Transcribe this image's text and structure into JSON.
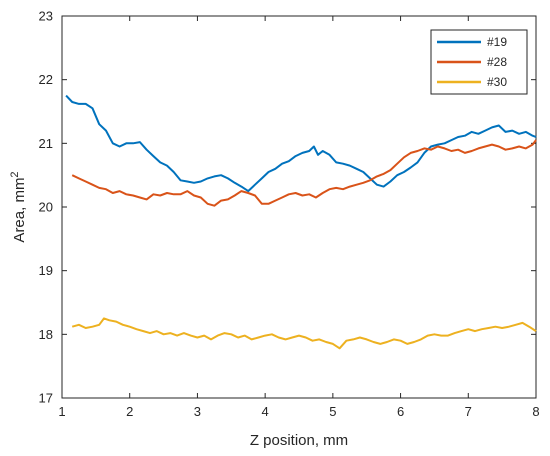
{
  "chart_data": {
    "type": "line",
    "xlabel": "Z position, mm",
    "ylabel": {
      "base": "Area, mm",
      "superscript": "2"
    },
    "xlim": [
      1,
      8
    ],
    "ylim": [
      17,
      23
    ],
    "xticks": [
      1,
      2,
      3,
      4,
      5,
      6,
      7,
      8
    ],
    "yticks": [
      17,
      18,
      19,
      20,
      21,
      22,
      23
    ],
    "grid": false,
    "legend_position": "top-right",
    "series": [
      {
        "name": "#19",
        "color": "#0072BD",
        "x": [
          1.06,
          1.15,
          1.25,
          1.35,
          1.45,
          1.55,
          1.65,
          1.75,
          1.85,
          1.95,
          2.05,
          2.15,
          2.25,
          2.35,
          2.45,
          2.55,
          2.65,
          2.75,
          2.85,
          2.95,
          3.05,
          3.15,
          3.25,
          3.35,
          3.45,
          3.55,
          3.65,
          3.75,
          3.85,
          3.95,
          4.05,
          4.15,
          4.25,
          4.35,
          4.45,
          4.55,
          4.65,
          4.72,
          4.78,
          4.85,
          4.95,
          5.05,
          5.15,
          5.25,
          5.35,
          5.45,
          5.55,
          5.65,
          5.75,
          5.85,
          5.95,
          6.05,
          6.15,
          6.25,
          6.35,
          6.45,
          6.55,
          6.65,
          6.75,
          6.85,
          6.95,
          7.05,
          7.15,
          7.25,
          7.35,
          7.45,
          7.55,
          7.65,
          7.75,
          7.85,
          7.95,
          8.0
        ],
        "y": [
          21.75,
          21.65,
          21.62,
          21.62,
          21.55,
          21.3,
          21.2,
          21.0,
          20.95,
          21.0,
          21.0,
          21.02,
          20.9,
          20.8,
          20.7,
          20.65,
          20.55,
          20.42,
          20.4,
          20.38,
          20.4,
          20.45,
          20.48,
          20.5,
          20.45,
          20.38,
          20.32,
          20.25,
          20.35,
          20.45,
          20.55,
          20.6,
          20.68,
          20.72,
          20.8,
          20.85,
          20.88,
          20.95,
          20.82,
          20.88,
          20.82,
          20.7,
          20.68,
          20.65,
          20.6,
          20.55,
          20.45,
          20.35,
          20.32,
          20.4,
          20.5,
          20.55,
          20.62,
          20.7,
          20.85,
          20.95,
          20.98,
          21.0,
          21.05,
          21.1,
          21.12,
          21.18,
          21.15,
          21.2,
          21.25,
          21.28,
          21.18,
          21.2,
          21.15,
          21.18,
          21.12,
          21.1
        ]
      },
      {
        "name": "#28",
        "color": "#D95319",
        "x": [
          1.15,
          1.25,
          1.35,
          1.45,
          1.55,
          1.65,
          1.75,
          1.85,
          1.95,
          2.05,
          2.15,
          2.25,
          2.35,
          2.45,
          2.55,
          2.65,
          2.75,
          2.85,
          2.95,
          3.05,
          3.15,
          3.25,
          3.35,
          3.45,
          3.55,
          3.65,
          3.75,
          3.85,
          3.95,
          4.05,
          4.15,
          4.25,
          4.35,
          4.45,
          4.55,
          4.65,
          4.75,
          4.85,
          4.95,
          5.05,
          5.15,
          5.25,
          5.35,
          5.45,
          5.55,
          5.65,
          5.75,
          5.85,
          5.95,
          6.05,
          6.15,
          6.25,
          6.35,
          6.45,
          6.55,
          6.65,
          6.75,
          6.85,
          6.95,
          7.05,
          7.15,
          7.25,
          7.35,
          7.45,
          7.55,
          7.65,
          7.75,
          7.85,
          7.95,
          8.0
        ],
        "y": [
          20.5,
          20.45,
          20.4,
          20.35,
          20.3,
          20.28,
          20.22,
          20.25,
          20.2,
          20.18,
          20.15,
          20.12,
          20.2,
          20.18,
          20.22,
          20.2,
          20.2,
          20.25,
          20.18,
          20.15,
          20.05,
          20.02,
          20.1,
          20.12,
          20.18,
          20.25,
          20.22,
          20.18,
          20.05,
          20.05,
          20.1,
          20.15,
          20.2,
          20.22,
          20.18,
          20.2,
          20.15,
          20.22,
          20.28,
          20.3,
          20.28,
          20.32,
          20.35,
          20.38,
          20.42,
          20.48,
          20.52,
          20.58,
          20.68,
          20.78,
          20.85,
          20.88,
          20.92,
          20.9,
          20.95,
          20.92,
          20.88,
          20.9,
          20.85,
          20.88,
          20.92,
          20.95,
          20.98,
          20.95,
          20.9,
          20.92,
          20.95,
          20.92,
          20.98,
          21.05
        ]
      },
      {
        "name": "#30",
        "color": "#EDB120",
        "x": [
          1.15,
          1.25,
          1.35,
          1.45,
          1.55,
          1.62,
          1.7,
          1.8,
          1.9,
          2.0,
          2.1,
          2.2,
          2.3,
          2.4,
          2.5,
          2.6,
          2.7,
          2.8,
          2.9,
          3.0,
          3.1,
          3.2,
          3.3,
          3.4,
          3.5,
          3.6,
          3.7,
          3.8,
          3.9,
          4.0,
          4.1,
          4.2,
          4.3,
          4.4,
          4.5,
          4.6,
          4.7,
          4.8,
          4.9,
          5.0,
          5.1,
          5.2,
          5.3,
          5.4,
          5.5,
          5.6,
          5.7,
          5.8,
          5.9,
          6.0,
          6.1,
          6.2,
          6.3,
          6.4,
          6.5,
          6.6,
          6.7,
          6.8,
          6.9,
          7.0,
          7.1,
          7.2,
          7.3,
          7.4,
          7.5,
          7.6,
          7.7,
          7.8,
          7.9,
          8.0
        ],
        "y": [
          18.12,
          18.15,
          18.1,
          18.12,
          18.15,
          18.25,
          18.22,
          18.2,
          18.15,
          18.12,
          18.08,
          18.05,
          18.02,
          18.05,
          18.0,
          18.02,
          17.98,
          18.02,
          17.98,
          17.95,
          17.98,
          17.92,
          17.98,
          18.02,
          18.0,
          17.95,
          17.98,
          17.92,
          17.95,
          17.98,
          18.0,
          17.95,
          17.92,
          17.95,
          17.98,
          17.95,
          17.9,
          17.92,
          17.88,
          17.85,
          17.78,
          17.9,
          17.92,
          17.95,
          17.92,
          17.88,
          17.85,
          17.88,
          17.92,
          17.9,
          17.85,
          17.88,
          17.92,
          17.98,
          18.0,
          17.98,
          17.98,
          18.02,
          18.05,
          18.08,
          18.05,
          18.08,
          18.1,
          18.12,
          18.1,
          18.12,
          18.15,
          18.18,
          18.12,
          18.05
        ]
      }
    ]
  }
}
